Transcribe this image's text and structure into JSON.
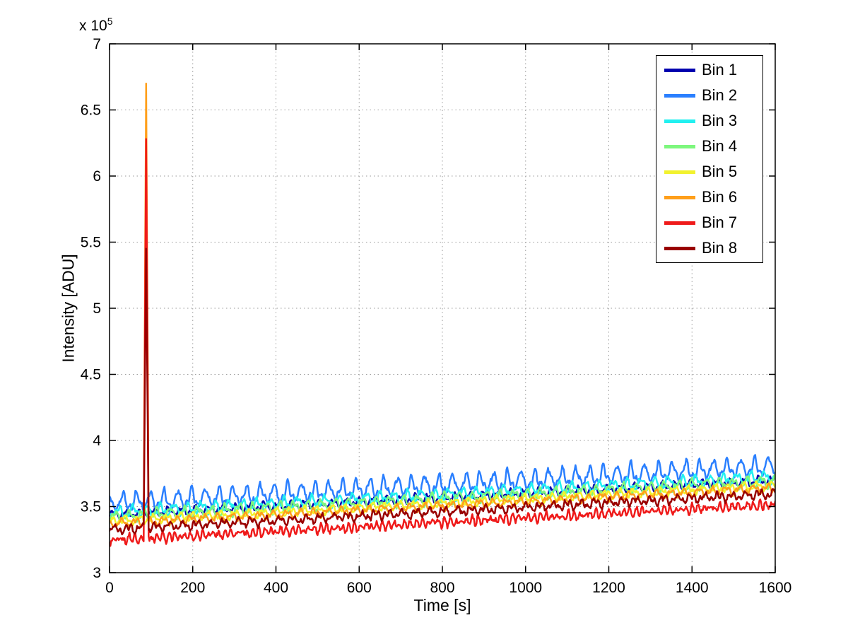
{
  "chart_data": {
    "type": "line",
    "title": "",
    "xlabel": "Time [s]",
    "ylabel": "Intensity [ADU]",
    "y_multiplier_base": "x 10",
    "y_multiplier_exp": "5",
    "xlim": [
      0,
      1600
    ],
    "ylim": [
      300000,
      700000
    ],
    "grid": true,
    "legend_position": "top-right",
    "x_ticks": [
      0,
      200,
      400,
      600,
      800,
      1000,
      1200,
      1400,
      1600
    ],
    "x_tick_labels": [
      "0",
      "200",
      "400",
      "600",
      "800",
      "1000",
      "1200",
      "1400",
      "1600"
    ],
    "y_ticks": [
      300000,
      350000,
      400000,
      450000,
      500000,
      550000,
      600000,
      650000,
      700000
    ],
    "y_tick_labels": [
      "3",
      "3.5",
      "4",
      "4.5",
      "5",
      "5.5",
      "6",
      "6.5",
      "7"
    ],
    "oscillation_period": 33,
    "spike": {
      "time": 88
    },
    "line_width": 2.5,
    "series": [
      {
        "name": "Bin 1",
        "color": "#0000AF",
        "start": 344000,
        "end": 370000,
        "amp": 4000,
        "bias": 0,
        "spike_peak": null
      },
      {
        "name": "Bin 2",
        "color": "#2A7FFF",
        "start": 351000,
        "end": 379000,
        "amp": 6000,
        "bias": 1.0,
        "spike_peak": null
      },
      {
        "name": "Bin 3",
        "color": "#22F0F0",
        "start": 345000,
        "end": 372000,
        "amp": 5000,
        "bias": 0.3,
        "spike_peak": null
      },
      {
        "name": "Bin 4",
        "color": "#7DF77D",
        "start": 342000,
        "end": 369000,
        "amp": 5000,
        "bias": 0.2,
        "spike_peak": null
      },
      {
        "name": "Bin 5",
        "color": "#F2F22E",
        "start": 339000,
        "end": 366000,
        "amp": 4000,
        "bias": 0,
        "spike_peak": null
      },
      {
        "name": "Bin 6",
        "color": "#FF9F1A",
        "start": 337000,
        "end": 364000,
        "amp": 4000,
        "bias": 0,
        "spike_peak": 670000
      },
      {
        "name": "Bin 7",
        "color": "#EF1A1A",
        "start": 326000,
        "end": 353000,
        "amp": 6000,
        "bias": -1.0,
        "spike_peak": 628000
      },
      {
        "name": "Bin 8",
        "color": "#990000",
        "start": 333000,
        "end": 360000,
        "amp": 5000,
        "bias": -0.3,
        "spike_peak": 545000
      }
    ]
  }
}
